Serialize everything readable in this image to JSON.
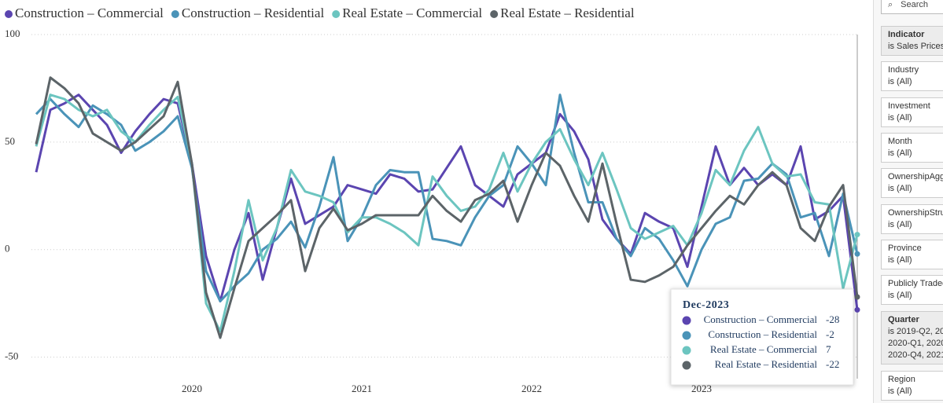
{
  "chart_data": {
    "type": "line",
    "categories": [
      null,
      null,
      null,
      null,
      null,
      null,
      null,
      null,
      null,
      null,
      null,
      "2020",
      null,
      null,
      null,
      null,
      null,
      null,
      null,
      null,
      null,
      null,
      null,
      "2021",
      null,
      null,
      null,
      null,
      null,
      null,
      null,
      null,
      null,
      null,
      null,
      "2022",
      null,
      null,
      null,
      null,
      null,
      null,
      null,
      null,
      null,
      null,
      null,
      "2023",
      null,
      null,
      null,
      null,
      null,
      null,
      null,
      null,
      null,
      null,
      null
    ],
    "series": [
      {
        "name": "Construction – Commercial",
        "color": "#5b45b0",
        "values": [
          36,
          65,
          68,
          72,
          65,
          58,
          45,
          55,
          63,
          70,
          68,
          40,
          -3,
          -24,
          0,
          17,
          -14,
          10,
          33,
          12,
          16,
          20,
          30,
          28,
          26,
          35,
          33,
          27,
          28,
          38,
          48,
          30,
          25,
          20,
          35,
          40,
          45,
          63,
          55,
          42,
          14,
          5,
          -2,
          17,
          13,
          10,
          -8,
          20,
          48,
          30,
          38,
          30,
          35,
          30,
          48,
          14,
          18,
          25,
          -28
        ]
      },
      {
        "name": "Construction – Residential",
        "color": "#4a93b8",
        "values": [
          63,
          70,
          63,
          57,
          67,
          63,
          58,
          46,
          50,
          55,
          62,
          38,
          -10,
          -24,
          -17,
          -11,
          0,
          5,
          13,
          1,
          20,
          43,
          4,
          15,
          30,
          37,
          36,
          36,
          5,
          4,
          2,
          15,
          25,
          30,
          48,
          40,
          30,
          72,
          45,
          22,
          22,
          5,
          -3,
          10,
          5,
          -5,
          -17,
          0,
          12,
          15,
          32,
          33,
          40,
          35,
          15,
          17,
          -3,
          26,
          -2
        ]
      },
      {
        "name": "Real Estate – Commercial",
        "color": "#6cc5c0",
        "values": [
          48,
          72,
          70,
          65,
          62,
          65,
          55,
          50,
          58,
          65,
          71,
          40,
          -25,
          -38,
          -10,
          23,
          -5,
          10,
          37,
          27,
          25,
          22,
          8,
          15,
          15,
          12,
          8,
          2,
          34,
          25,
          18,
          20,
          28,
          45,
          27,
          40,
          50,
          56,
          42,
          30,
          45,
          28,
          10,
          5,
          8,
          11,
          2,
          17,
          37,
          30,
          46,
          57,
          40,
          34,
          35,
          22,
          21,
          -18,
          7
        ]
      },
      {
        "name": "Real Estate – Residential",
        "color": "#5c6468",
        "values": [
          49,
          80,
          75,
          68,
          54,
          50,
          46,
          50,
          56,
          62,
          78,
          40,
          -20,
          -41,
          -18,
          4,
          10,
          16,
          23,
          -10,
          10,
          19,
          9,
          12,
          16,
          16,
          16,
          16,
          25,
          18,
          13,
          23,
          26,
          32,
          13,
          30,
          45,
          39,
          25,
          13,
          40,
          12,
          -14,
          -15,
          -12,
          -8,
          2,
          10,
          18,
          25,
          21,
          30,
          36,
          30,
          10,
          4,
          20,
          30,
          -22
        ]
      }
    ],
    "ylim": [
      -60,
      100
    ],
    "yticks": [
      -50,
      0,
      50,
      100
    ],
    "grid": true,
    "legend": "top-left",
    "tooltip": {
      "title": "Dec-2023",
      "index": 58
    }
  },
  "filter_pane": {
    "search": "Search",
    "cards": [
      {
        "title": "Indicator",
        "lines": [
          "is Sales Prices"
        ],
        "active": true
      },
      {
        "title": "Industry",
        "lines": [
          "is (All)"
        ]
      },
      {
        "title": "Investment",
        "lines": [
          "is (All)"
        ]
      },
      {
        "title": "Month",
        "lines": [
          "is (All)"
        ]
      },
      {
        "title": "OwnershipAgg",
        "lines": [
          "is (All)"
        ]
      },
      {
        "title": "OwnershipStru",
        "lines": [
          "is (All)"
        ]
      },
      {
        "title": "Province",
        "lines": [
          "is (All)"
        ]
      },
      {
        "title": "Publicly Traded",
        "lines": [
          "is (All)"
        ]
      },
      {
        "title": "Quarter",
        "lines": [
          "is 2019-Q2, 20",
          "2020-Q1, 2020",
          "2020-Q4, 2021"
        ],
        "active": true
      },
      {
        "title": "Region",
        "lines": [
          "is (All)"
        ]
      }
    ]
  }
}
